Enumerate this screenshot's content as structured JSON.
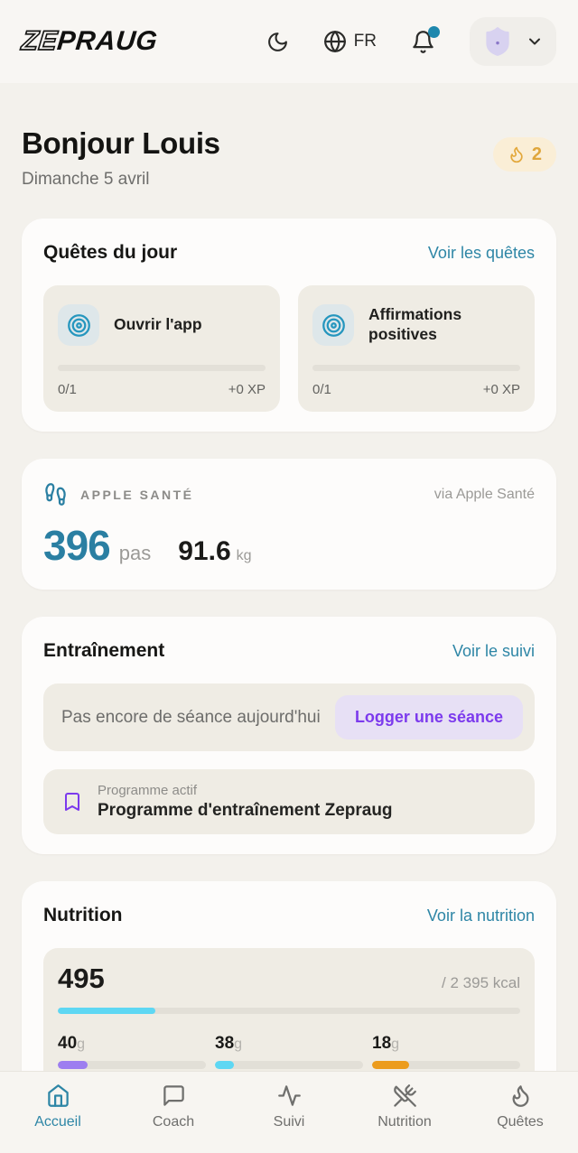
{
  "colors": {
    "accent_teal": "#2e86a6",
    "steps_teal": "#2a7fa2",
    "purple": "#7c3aed",
    "amber": "#dfa63c",
    "notification_dot": "#1e87ad",
    "calories_fill": "#5ed7f3"
  },
  "header": {
    "logo_outline": "ZE",
    "logo_solid": "PRAUG",
    "language": "FR"
  },
  "greeting": {
    "title": "Bonjour Louis",
    "date": "Dimanche 5 avril",
    "streak_count": "2"
  },
  "quests": {
    "title": "Quêtes du jour",
    "link": "Voir les quêtes",
    "items": [
      {
        "label": "Ouvrir l'app",
        "progress": "0/1",
        "xp": "+0 XP",
        "progress_pct": 0
      },
      {
        "label": "Affirmations positives",
        "progress": "0/1",
        "xp": "+0 XP",
        "progress_pct": 0
      }
    ]
  },
  "health": {
    "label": "APPLE SANTÉ",
    "via": "via Apple Santé",
    "steps": "396",
    "steps_unit": "pas",
    "weight": "91.6",
    "weight_unit": "kg"
  },
  "training": {
    "title": "Entraînement",
    "link": "Voir le suivi",
    "empty_text": "Pas encore de séance aujourd'hui",
    "log_button": "Logger une séance",
    "program_label": "Programme actif",
    "program_name": "Programme d'entraînement Zepraug"
  },
  "nutrition": {
    "title": "Nutrition",
    "link": "Voir la nutrition",
    "calories": "495",
    "calories_target": "/ 2 395 kcal",
    "calories_pct": 21,
    "calories_color": "#5ed7f3",
    "macros": [
      {
        "value": "40",
        "unit": "g",
        "pct": 20,
        "color": "#9d7ef0"
      },
      {
        "value": "38",
        "unit": "g",
        "pct": 13,
        "color": "#5ed7f3"
      },
      {
        "value": "18",
        "unit": "g",
        "pct": 25,
        "color": "#ec9c1d"
      }
    ]
  },
  "nav": {
    "items": [
      {
        "label": "Accueil",
        "active": true
      },
      {
        "label": "Coach",
        "active": false
      },
      {
        "label": "Suivi",
        "active": false
      },
      {
        "label": "Nutrition",
        "active": false
      },
      {
        "label": "Quêtes",
        "active": false
      }
    ]
  }
}
